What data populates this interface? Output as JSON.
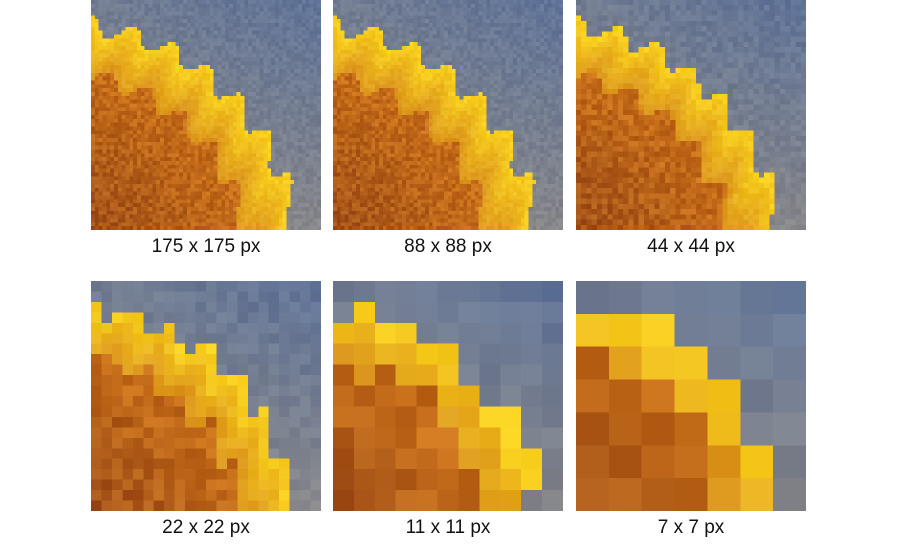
{
  "panels": [
    {
      "caption": "175 x 175 px"
    },
    {
      "caption": "88 x 88 px"
    },
    {
      "caption": "44 x 44 px"
    },
    {
      "caption": "22 x 22 px"
    },
    {
      "caption": "11 x 11 px"
    },
    {
      "caption": "7 x 7 px"
    }
  ]
}
